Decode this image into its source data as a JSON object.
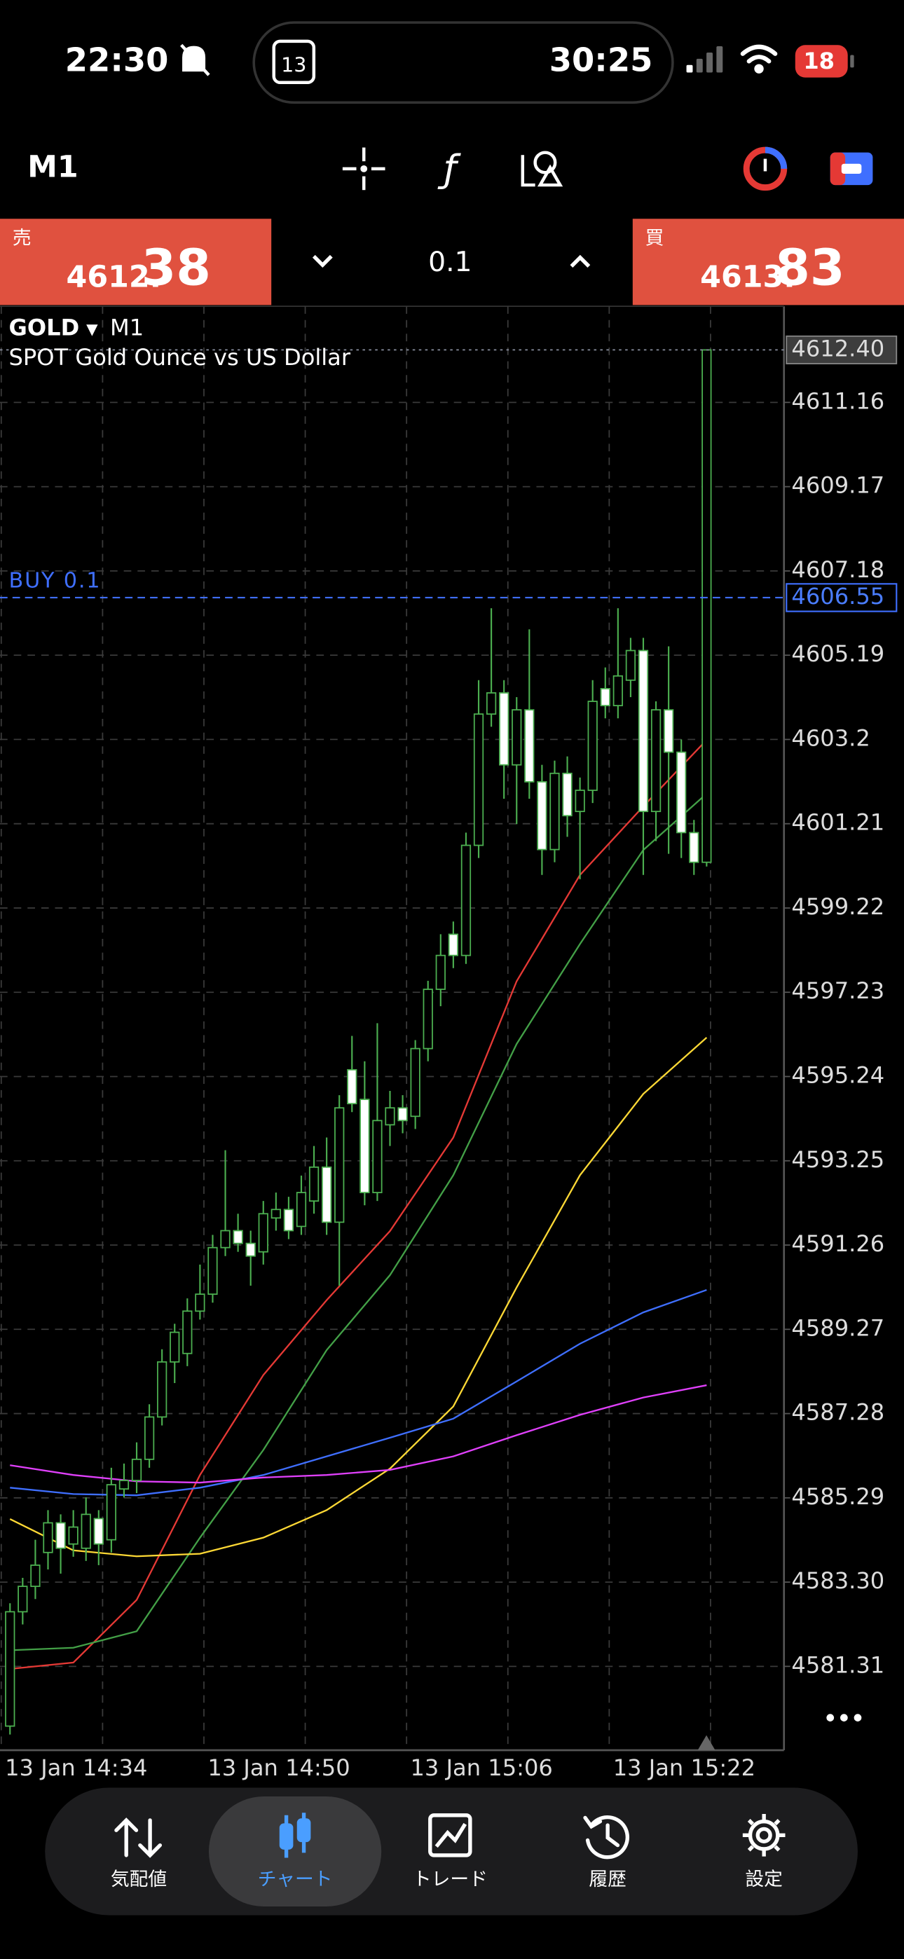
{
  "status_bar": {
    "time": "22:30",
    "calendar_day": "13",
    "timer": "30:25",
    "battery": "18"
  },
  "toolbar": {
    "timeframe": "M1"
  },
  "trade_panel": {
    "sell": {
      "label": "売",
      "price_small": "4612.",
      "price_large": "38"
    },
    "volume": "0.1",
    "buy": {
      "label": "買",
      "price_small": "4613.",
      "price_large": "83"
    }
  },
  "chart_data": {
    "type": "candlestick",
    "symbol": "GOLD",
    "timeframe": "M1",
    "description": "SPOT Gold Ounce vs US Dollar",
    "categories": [
      "13 Jan 14:34",
      null,
      null,
      null,
      null,
      null,
      null,
      null,
      null,
      null,
      null,
      null,
      null,
      null,
      null,
      null,
      "13 Jan 14:50",
      null,
      null,
      null,
      null,
      null,
      null,
      null,
      null,
      null,
      null,
      null,
      null,
      null,
      null,
      null,
      "13 Jan 15:06",
      null,
      null,
      null,
      null,
      null,
      null,
      null,
      null,
      null,
      null,
      null,
      null,
      null,
      null,
      null,
      "13 Jan 15:22",
      null,
      null,
      null,
      null,
      null,
      null,
      null
    ],
    "open": [
      4579.9,
      4582.6,
      4583.2,
      4584.0,
      4584.7,
      4584.2,
      4584.1,
      4584.8,
      4584.3,
      4585.5,
      4585.7,
      4586.2,
      4587.2,
      4588.5,
      4588.7,
      4589.7,
      4590.1,
      4591.2,
      4591.6,
      4591.3,
      4591.1,
      4591.9,
      4592.1,
      4591.7,
      4592.3,
      4593.1,
      4591.8,
      4595.4,
      4594.7,
      4592.5,
      4594.1,
      4594.5,
      4594.3,
      4595.9,
      4597.3,
      4598.6,
      4598.1,
      4600.7,
      4603.8,
      4604.3,
      4602.6,
      4603.9,
      4602.2,
      4600.6,
      4602.4,
      4601.5,
      4602.0,
      4604.4,
      4604.0,
      4604.6,
      4605.3,
      4601.5,
      4603.9,
      4602.9,
      4601.0,
      4600.3
    ],
    "high": [
      4582.8,
      4583.4,
      4584.3,
      4585.0,
      4584.9,
      4585.0,
      4585.3,
      4585.0,
      4586.0,
      4586.1,
      4586.6,
      4587.5,
      4588.8,
      4589.4,
      4590.0,
      4590.8,
      4591.5,
      4593.5,
      4592.0,
      4591.6,
      4592.3,
      4592.5,
      4592.4,
      4592.9,
      4593.6,
      4593.8,
      4594.8,
      4596.2,
      4595.6,
      4596.5,
      4594.9,
      4594.8,
      4596.1,
      4597.5,
      4598.6,
      4598.9,
      4601.0,
      4604.6,
      4606.3,
      4604.6,
      4604.2,
      4605.8,
      4602.6,
      4602.7,
      4602.8,
      4602.3,
      4604.6,
      4604.9,
      4606.3,
      4605.6,
      4605.6,
      4604.1,
      4605.4,
      4603.2,
      4601.3,
      4612.4
    ],
    "low": [
      4579.7,
      4582.3,
      4582.9,
      4583.6,
      4583.5,
      4583.9,
      4583.8,
      4583.7,
      4584.0,
      4585.3,
      4585.4,
      4586.0,
      4587.0,
      4588.0,
      4588.4,
      4589.5,
      4589.9,
      4591.0,
      4591.1,
      4590.3,
      4590.8,
      4591.6,
      4591.4,
      4591.5,
      4592.0,
      4591.5,
      4590.3,
      4594.4,
      4592.2,
      4592.3,
      4593.6,
      4593.9,
      4594.0,
      4595.6,
      4596.9,
      4597.8,
      4597.9,
      4600.4,
      4603.5,
      4601.8,
      4601.2,
      4601.8,
      4600.0,
      4600.3,
      4600.9,
      4599.9,
      4601.7,
      4603.7,
      4603.7,
      4604.2,
      4600.0,
      4600.8,
      4600.5,
      4600.4,
      4600.0,
      4600.2
    ],
    "close": [
      4582.6,
      4583.2,
      4583.7,
      4584.7,
      4584.1,
      4584.6,
      4584.9,
      4584.2,
      4585.6,
      4585.7,
      4586.2,
      4587.2,
      4588.5,
      4589.2,
      4589.7,
      4590.1,
      4591.2,
      4591.6,
      4591.3,
      4591.0,
      4592.0,
      4592.1,
      4591.6,
      4592.5,
      4593.1,
      4591.8,
      4594.5,
      4594.6,
      4592.5,
      4594.2,
      4594.5,
      4594.2,
      4595.9,
      4597.3,
      4598.1,
      4598.1,
      4600.7,
      4603.8,
      4604.3,
      4602.6,
      4603.9,
      4602.2,
      4600.6,
      4602.4,
      4601.4,
      4602.0,
      4604.1,
      4604.0,
      4604.7,
      4605.3,
      4601.5,
      4603.9,
      4602.9,
      4601.0,
      4600.3,
      4612.4
    ],
    "up_color": "#4caf50",
    "down_color": "#ffffff",
    "moving_averages": [
      {
        "color": "#e53935",
        "x": [
          0,
          5,
          10,
          15,
          20,
          25,
          30,
          35,
          40,
          45,
          50,
          55
        ],
        "values": [
          4581.25,
          4581.4,
          4582.88,
          4585.83,
          4588.19,
          4589.96,
          4591.59,
          4593.8,
          4597.49,
          4600.0,
          4601.62,
          4603.19
        ]
      },
      {
        "color": "#43a047",
        "x": [
          0,
          5,
          10,
          15,
          20,
          25,
          30,
          35,
          40,
          45,
          50,
          55
        ],
        "values": [
          4581.69,
          4581.75,
          4582.14,
          4584.35,
          4586.42,
          4588.78,
          4590.55,
          4592.91,
          4596.01,
          4598.37,
          4600.59,
          4601.92
        ]
      },
      {
        "color": "#fdd835",
        "x": [
          0,
          5,
          10,
          15,
          20,
          25,
          30,
          35,
          40,
          45,
          50,
          55
        ],
        "values": [
          4584.79,
          4584.05,
          4583.91,
          4583.97,
          4584.35,
          4585.0,
          4585.98,
          4587.45,
          4590.26,
          4592.91,
          4594.83,
          4596.16
        ]
      },
      {
        "color": "#3f6fff",
        "x": [
          0,
          5,
          10,
          15,
          20,
          25,
          30,
          35,
          40,
          45,
          50,
          55
        ],
        "values": [
          4585.53,
          4585.38,
          4585.35,
          4585.53,
          4585.83,
          4586.27,
          4586.71,
          4587.16,
          4588.04,
          4588.93,
          4589.67,
          4590.2
        ]
      },
      {
        "color": "#e040fb",
        "x": [
          0,
          5,
          10,
          15,
          20,
          25,
          30,
          35,
          40,
          45,
          50,
          55
        ],
        "values": [
          4586.06,
          4585.83,
          4585.68,
          4585.65,
          4585.77,
          4585.83,
          4585.95,
          4586.27,
          4586.77,
          4587.25,
          4587.66,
          4587.95
        ]
      }
    ],
    "ylim": [
      4579.33,
      4613.43
    ],
    "yticks": [
      4611.16,
      4609.17,
      4607.18,
      4605.19,
      4603.2,
      4601.21,
      4599.22,
      4597.23,
      4595.24,
      4593.25,
      4591.26,
      4589.27,
      4587.28,
      4585.29,
      {
        "value": 4583.3,
        "label": "4583.30"
      },
      4581.31
    ],
    "grid": true,
    "current_price": {
      "value": 4612.4,
      "label": "4612.40"
    },
    "order_line": {
      "label": "BUY 0.1",
      "price": 4606.55
    }
  },
  "bottom_nav": {
    "items": [
      "気配値",
      "チャート",
      "トレード",
      "履歴",
      "設定"
    ],
    "active": 1
  }
}
